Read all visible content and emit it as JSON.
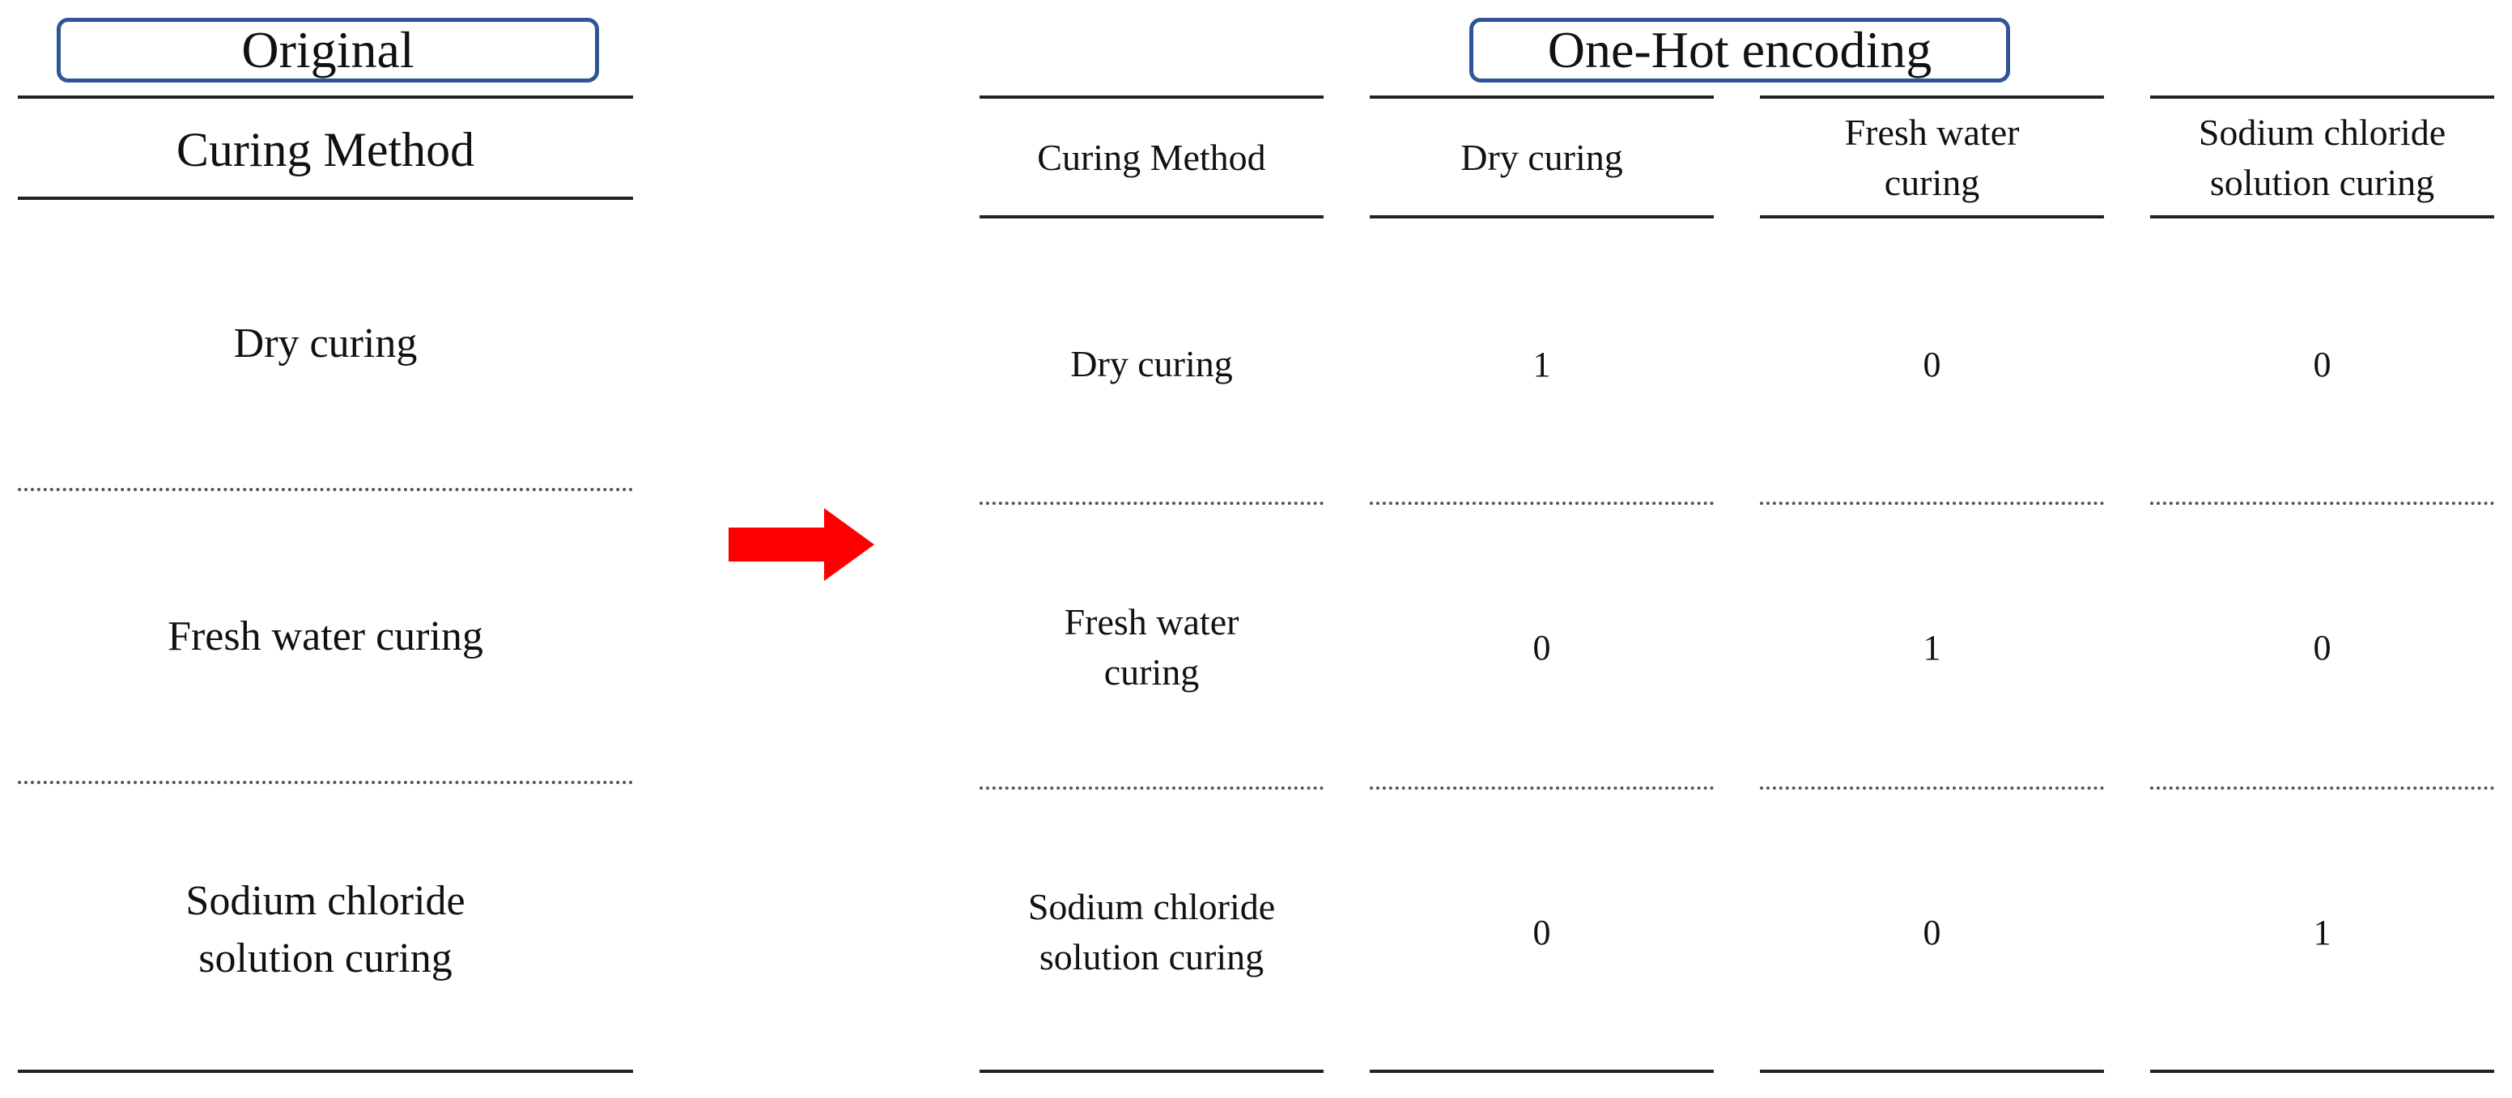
{
  "original": {
    "title": "Original",
    "header": "Curing Method",
    "rows": [
      "Dry curing",
      "Fresh water curing",
      "Sodium chloride\nsolution curing"
    ]
  },
  "arrow": {
    "color": "#ff0000",
    "icon": "right-arrow-icon"
  },
  "encoded": {
    "title": "One-Hot encoding",
    "headers": [
      "Curing Method",
      "Dry curing",
      "Fresh water\ncuring",
      "Sodium chloride\nsolution curing"
    ],
    "rows": [
      {
        "method": "Dry curing",
        "values": [
          "1",
          "0",
          "0"
        ]
      },
      {
        "method": "Fresh water\ncuring",
        "values": [
          "0",
          "1",
          "0"
        ]
      },
      {
        "method": "Sodium chloride\nsolution curing",
        "values": [
          "0",
          "0",
          "1"
        ]
      }
    ]
  },
  "colors": {
    "title_border": "#2f5597",
    "arrow": "#ff0000",
    "rule": "#222222"
  }
}
